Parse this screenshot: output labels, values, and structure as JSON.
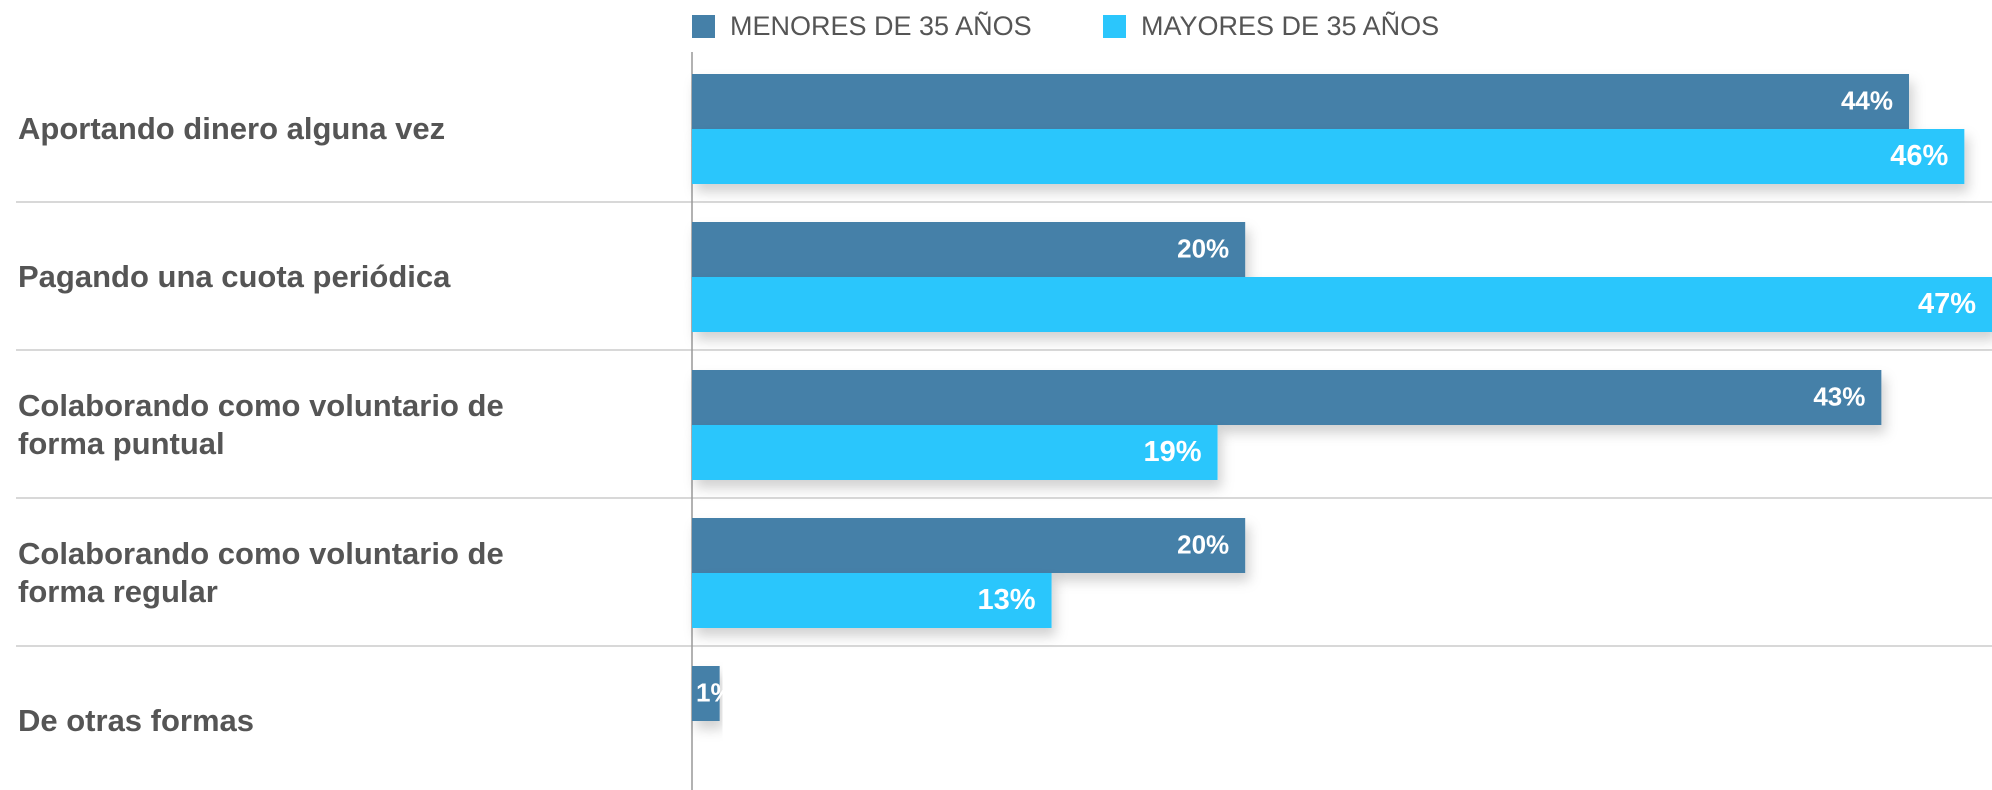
{
  "chart_data": {
    "type": "bar",
    "orientation": "horizontal",
    "categories": [
      "Aportando dinero alguna vez",
      "Pagando una cuota periódica",
      "Colaborando como voluntario de forma puntual",
      "Colaborando como voluntario de forma regular",
      "De otras formas"
    ],
    "series": [
      {
        "name": "MENORES DE 35 AÑOS",
        "color": "#4580a8",
        "values": [
          44,
          20,
          43,
          20,
          1
        ],
        "value_labels": [
          "44%",
          "20%",
          "43%",
          "20%",
          "1%"
        ]
      },
      {
        "name": "MAYORES DE 35 AÑOS",
        "color": "#2bc6fc",
        "values": [
          46,
          47,
          19,
          13,
          null
        ],
        "value_labels": [
          "46%",
          "47%",
          "19%",
          "13%",
          null
        ]
      }
    ],
    "xlim": [
      0,
      47
    ],
    "legend": "top"
  }
}
